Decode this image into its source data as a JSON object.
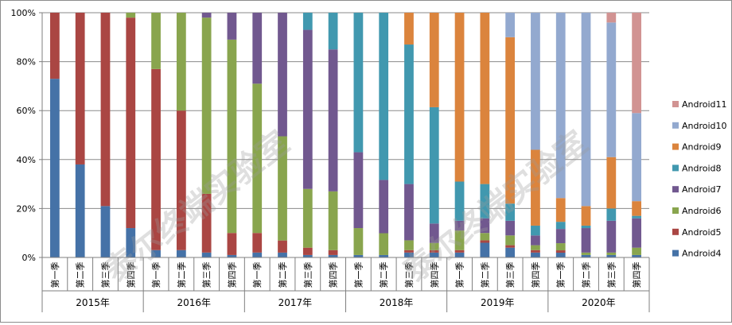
{
  "chart_data": {
    "type": "bar",
    "stacked": "percent",
    "title": "",
    "xlabel": "",
    "ylabel": "",
    "ylim": [
      0,
      100
    ],
    "y_ticks": [
      "0%",
      "20%",
      "40%",
      "60%",
      "80%",
      "100%"
    ],
    "grid": true,
    "legend_position": "right",
    "watermark": "泰尔终端实验室",
    "groups": [
      {
        "label": "2015年",
        "quarters": [
          "第一季",
          "第二季",
          "第三季",
          "第四季"
        ]
      },
      {
        "label": "2016年",
        "quarters": [
          "第一季",
          "第二季",
          "第三季",
          "第四季"
        ]
      },
      {
        "label": "2017年",
        "quarters": [
          "第一季",
          "第二季",
          "第三季",
          "第四季"
        ]
      },
      {
        "label": "2018年",
        "quarters": [
          "第一季",
          "第二季",
          "第三季",
          "第四季"
        ]
      },
      {
        "label": "2019年",
        "quarters": [
          "第一季",
          "第二季",
          "第三季",
          "第四季"
        ]
      },
      {
        "label": "2020年",
        "quarters": [
          "第一季",
          "第二季",
          "第三季",
          "第四季"
        ]
      }
    ],
    "series": [
      {
        "name": "Android4",
        "color": "#4572A7",
        "values": [
          73,
          38,
          21,
          12,
          3,
          3,
          2,
          1,
          2,
          2,
          1,
          1,
          1,
          1,
          2,
          2,
          2,
          6,
          4,
          2,
          2,
          1,
          1,
          1
        ]
      },
      {
        "name": "Android5",
        "color": "#AA4643",
        "values": [
          27,
          62,
          79,
          86,
          74,
          57,
          24,
          9,
          8,
          5,
          3,
          2,
          0,
          0,
          1,
          1,
          1,
          1,
          1,
          1,
          1,
          0,
          0,
          0
        ]
      },
      {
        "name": "Android6",
        "color": "#89A54E",
        "values": [
          0,
          0,
          0,
          2,
          23,
          40,
          72,
          79,
          61,
          43,
          24,
          24,
          11,
          9,
          4,
          3,
          8,
          3,
          4,
          2,
          3,
          1,
          1,
          3
        ]
      },
      {
        "name": "Android7",
        "color": "#71588F",
        "values": [
          0,
          0,
          0,
          0,
          0,
          0,
          2,
          11,
          29,
          51,
          65,
          58,
          31,
          22,
          23,
          8,
          4,
          6,
          6,
          4,
          6,
          10,
          13,
          12
        ]
      },
      {
        "name": "Android8",
        "color": "#4198AF",
        "values": [
          0,
          0,
          0,
          0,
          0,
          0,
          0,
          0,
          0,
          0,
          7,
          15,
          57,
          69,
          57,
          48,
          16,
          14,
          7,
          4,
          3,
          1,
          5,
          1
        ]
      },
      {
        "name": "Android9",
        "color": "#DB843D",
        "values": [
          0,
          0,
          0,
          0,
          0,
          0,
          0,
          0,
          0,
          0,
          0,
          0,
          0,
          0,
          13,
          39,
          69,
          70,
          68,
          31,
          10,
          8,
          21,
          6
        ]
      },
      {
        "name": "Android10",
        "color": "#93A9CF",
        "values": [
          0,
          0,
          0,
          0,
          0,
          0,
          0,
          0,
          0,
          0,
          0,
          0,
          0,
          0,
          0,
          0,
          0,
          0,
          10,
          56,
          78,
          79,
          55,
          36
        ]
      },
      {
        "name": "Android11",
        "color": "#D19392",
        "values": [
          0,
          0,
          0,
          0,
          0,
          0,
          0,
          0,
          0,
          0,
          0,
          0,
          0,
          0,
          0,
          0,
          0,
          0,
          0,
          0,
          0,
          0,
          4,
          41
        ]
      }
    ]
  }
}
